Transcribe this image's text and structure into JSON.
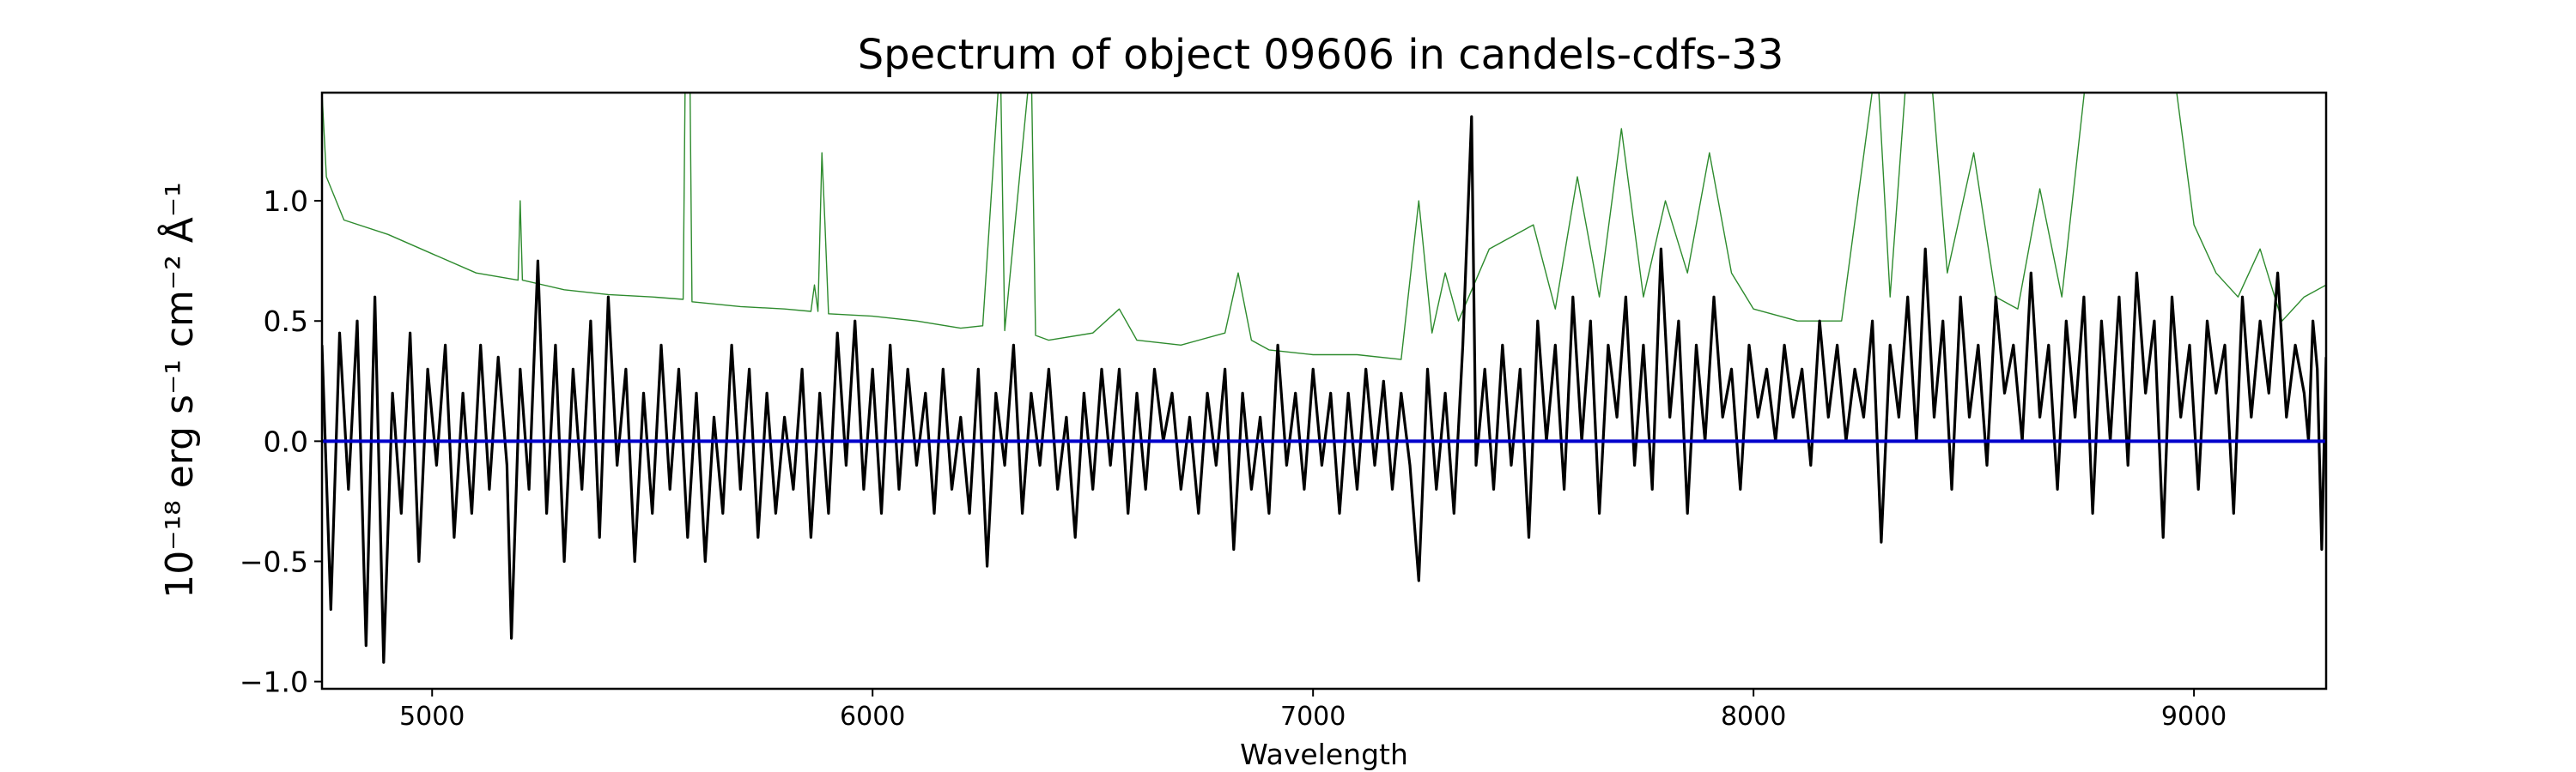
{
  "chart_data": {
    "type": "line",
    "title": "Spectrum of object 09606 in candels-cdfs-33",
    "xlabel": "Wavelength",
    "ylabel": "10⁻¹⁸ erg s⁻¹ cm⁻² Å⁻¹",
    "xlim": [
      4750,
      9300
    ],
    "ylim": [
      -1.03,
      1.45
    ],
    "xticks": [
      5000,
      6000,
      7000,
      8000,
      9000
    ],
    "xtick_labels": [
      "5000",
      "6000",
      "7000",
      "8000",
      "9000"
    ],
    "yticks": [
      1.0,
      0.5,
      0.0,
      -0.5,
      -1.0
    ],
    "ytick_labels": [
      "1.0",
      "0.5",
      "0.0",
      "−0.5",
      "−1.0"
    ],
    "grid": false,
    "legend": "none",
    "colors": {
      "flux": "#000000",
      "error": "#2e8b2e",
      "zero": "#0000cc"
    },
    "series": [
      {
        "id": "error",
        "color": "#2e8b2e",
        "points": [
          [
            4750,
            1.45
          ],
          [
            4760,
            1.1
          ],
          [
            4800,
            0.92
          ],
          [
            4900,
            0.86
          ],
          [
            5000,
            0.78
          ],
          [
            5100,
            0.7
          ],
          [
            5195,
            0.67
          ],
          [
            5200,
            1.0
          ],
          [
            5205,
            0.67
          ],
          [
            5300,
            0.63
          ],
          [
            5400,
            0.61
          ],
          [
            5500,
            0.6
          ],
          [
            5570,
            0.59
          ],
          [
            5575,
            1.6
          ],
          [
            5585,
            1.6
          ],
          [
            5590,
            0.58
          ],
          [
            5700,
            0.56
          ],
          [
            5800,
            0.55
          ],
          [
            5860,
            0.54
          ],
          [
            5868,
            0.65
          ],
          [
            5876,
            0.54
          ],
          [
            5885,
            1.2
          ],
          [
            5892,
            0.9
          ],
          [
            5900,
            0.53
          ],
          [
            6000,
            0.52
          ],
          [
            6100,
            0.5
          ],
          [
            6200,
            0.47
          ],
          [
            6250,
            0.48
          ],
          [
            6290,
            1.6
          ],
          [
            6300,
            0.46
          ],
          [
            6360,
            1.6
          ],
          [
            6370,
            0.44
          ],
          [
            6400,
            0.42
          ],
          [
            6500,
            0.45
          ],
          [
            6560,
            0.55
          ],
          [
            6600,
            0.42
          ],
          [
            6700,
            0.4
          ],
          [
            6800,
            0.45
          ],
          [
            6830,
            0.7
          ],
          [
            6860,
            0.42
          ],
          [
            6900,
            0.38
          ],
          [
            7000,
            0.36
          ],
          [
            7100,
            0.36
          ],
          [
            7200,
            0.34
          ],
          [
            7240,
            1.0
          ],
          [
            7270,
            0.45
          ],
          [
            7300,
            0.7
          ],
          [
            7330,
            0.5
          ],
          [
            7400,
            0.8
          ],
          [
            7500,
            0.9
          ],
          [
            7550,
            0.55
          ],
          [
            7600,
            1.1
          ],
          [
            7650,
            0.6
          ],
          [
            7700,
            1.3
          ],
          [
            7750,
            0.6
          ],
          [
            7800,
            1.0
          ],
          [
            7850,
            0.7
          ],
          [
            7900,
            1.2
          ],
          [
            7950,
            0.7
          ],
          [
            8000,
            0.55
          ],
          [
            8100,
            0.5
          ],
          [
            8200,
            0.5
          ],
          [
            8280,
            1.6
          ],
          [
            8310,
            0.6
          ],
          [
            8350,
            1.6
          ],
          [
            8400,
            1.6
          ],
          [
            8440,
            0.7
          ],
          [
            8500,
            1.2
          ],
          [
            8550,
            0.6
          ],
          [
            8600,
            0.55
          ],
          [
            8650,
            1.05
          ],
          [
            8700,
            0.6
          ],
          [
            8760,
            1.6
          ],
          [
            8800,
            1.6
          ],
          [
            8850,
            1.6
          ],
          [
            8900,
            1.6
          ],
          [
            8950,
            1.6
          ],
          [
            9000,
            0.9
          ],
          [
            9050,
            0.7
          ],
          [
            9100,
            0.6
          ],
          [
            9150,
            0.8
          ],
          [
            9200,
            0.5
          ],
          [
            9250,
            0.6
          ],
          [
            9300,
            0.65
          ]
        ]
      },
      {
        "id": "flux",
        "color": "#000000",
        "points": [
          [
            4750,
            0.4
          ],
          [
            4770,
            -0.7
          ],
          [
            4790,
            0.45
          ],
          [
            4810,
            -0.2
          ],
          [
            4830,
            0.5
          ],
          [
            4850,
            -0.85
          ],
          [
            4870,
            0.6
          ],
          [
            4890,
            -0.92
          ],
          [
            4910,
            0.2
          ],
          [
            4930,
            -0.3
          ],
          [
            4950,
            0.45
          ],
          [
            4970,
            -0.5
          ],
          [
            4990,
            0.3
          ],
          [
            5010,
            -0.1
          ],
          [
            5030,
            0.4
          ],
          [
            5050,
            -0.4
          ],
          [
            5070,
            0.2
          ],
          [
            5090,
            -0.3
          ],
          [
            5110,
            0.4
          ],
          [
            5130,
            -0.2
          ],
          [
            5150,
            0.35
          ],
          [
            5170,
            -0.1
          ],
          [
            5180,
            -0.82
          ],
          [
            5200,
            0.3
          ],
          [
            5220,
            -0.2
          ],
          [
            5240,
            0.75
          ],
          [
            5260,
            -0.3
          ],
          [
            5280,
            0.4
          ],
          [
            5300,
            -0.5
          ],
          [
            5320,
            0.3
          ],
          [
            5340,
            -0.2
          ],
          [
            5360,
            0.5
          ],
          [
            5380,
            -0.4
          ],
          [
            5400,
            0.6
          ],
          [
            5420,
            -0.1
          ],
          [
            5440,
            0.3
          ],
          [
            5460,
            -0.5
          ],
          [
            5480,
            0.2
          ],
          [
            5500,
            -0.3
          ],
          [
            5520,
            0.4
          ],
          [
            5540,
            -0.2
          ],
          [
            5560,
            0.3
          ],
          [
            5580,
            -0.4
          ],
          [
            5600,
            0.2
          ],
          [
            5620,
            -0.5
          ],
          [
            5640,
            0.1
          ],
          [
            5660,
            -0.3
          ],
          [
            5680,
            0.4
          ],
          [
            5700,
            -0.2
          ],
          [
            5720,
            0.3
          ],
          [
            5740,
            -0.4
          ],
          [
            5760,
            0.2
          ],
          [
            5780,
            -0.3
          ],
          [
            5800,
            0.1
          ],
          [
            5820,
            -0.2
          ],
          [
            5840,
            0.3
          ],
          [
            5860,
            -0.4
          ],
          [
            5880,
            0.2
          ],
          [
            5900,
            -0.3
          ],
          [
            5920,
            0.45
          ],
          [
            5940,
            -0.1
          ],
          [
            5960,
            0.5
          ],
          [
            5980,
            -0.2
          ],
          [
            6000,
            0.3
          ],
          [
            6020,
            -0.3
          ],
          [
            6040,
            0.4
          ],
          [
            6060,
            -0.2
          ],
          [
            6080,
            0.3
          ],
          [
            6100,
            -0.1
          ],
          [
            6120,
            0.2
          ],
          [
            6140,
            -0.3
          ],
          [
            6160,
            0.3
          ],
          [
            6180,
            -0.2
          ],
          [
            6200,
            0.1
          ],
          [
            6220,
            -0.3
          ],
          [
            6240,
            0.3
          ],
          [
            6260,
            -0.52
          ],
          [
            6280,
            0.2
          ],
          [
            6300,
            -0.1
          ],
          [
            6320,
            0.4
          ],
          [
            6340,
            -0.3
          ],
          [
            6360,
            0.2
          ],
          [
            6380,
            -0.1
          ],
          [
            6400,
            0.3
          ],
          [
            6420,
            -0.2
          ],
          [
            6440,
            0.1
          ],
          [
            6460,
            -0.4
          ],
          [
            6480,
            0.2
          ],
          [
            6500,
            -0.2
          ],
          [
            6520,
            0.3
          ],
          [
            6540,
            -0.1
          ],
          [
            6560,
            0.3
          ],
          [
            6580,
            -0.3
          ],
          [
            6600,
            0.2
          ],
          [
            6620,
            -0.2
          ],
          [
            6640,
            0.3
          ],
          [
            6660,
            0.0
          ],
          [
            6680,
            0.2
          ],
          [
            6700,
            -0.2
          ],
          [
            6720,
            0.1
          ],
          [
            6740,
            -0.3
          ],
          [
            6760,
            0.2
          ],
          [
            6780,
            -0.1
          ],
          [
            6800,
            0.3
          ],
          [
            6820,
            -0.45
          ],
          [
            6840,
            0.2
          ],
          [
            6860,
            -0.2
          ],
          [
            6880,
            0.1
          ],
          [
            6900,
            -0.3
          ],
          [
            6920,
            0.4
          ],
          [
            6940,
            -0.1
          ],
          [
            6960,
            0.2
          ],
          [
            6980,
            -0.2
          ],
          [
            7000,
            0.3
          ],
          [
            7020,
            -0.1
          ],
          [
            7040,
            0.2
          ],
          [
            7060,
            -0.3
          ],
          [
            7080,
            0.2
          ],
          [
            7100,
            -0.2
          ],
          [
            7120,
            0.3
          ],
          [
            7140,
            -0.1
          ],
          [
            7160,
            0.25
          ],
          [
            7180,
            -0.2
          ],
          [
            7200,
            0.2
          ],
          [
            7220,
            -0.1
          ],
          [
            7240,
            -0.58
          ],
          [
            7260,
            0.3
          ],
          [
            7280,
            -0.2
          ],
          [
            7300,
            0.2
          ],
          [
            7320,
            -0.3
          ],
          [
            7340,
            0.4
          ],
          [
            7360,
            1.35
          ],
          [
            7370,
            -0.1
          ],
          [
            7390,
            0.3
          ],
          [
            7410,
            -0.2
          ],
          [
            7430,
            0.4
          ],
          [
            7450,
            -0.1
          ],
          [
            7470,
            0.3
          ],
          [
            7490,
            -0.4
          ],
          [
            7510,
            0.5
          ],
          [
            7530,
            0.0
          ],
          [
            7550,
            0.4
          ],
          [
            7570,
            -0.2
          ],
          [
            7590,
            0.6
          ],
          [
            7610,
            0.0
          ],
          [
            7630,
            0.5
          ],
          [
            7650,
            -0.3
          ],
          [
            7670,
            0.4
          ],
          [
            7690,
            0.1
          ],
          [
            7710,
            0.6
          ],
          [
            7730,
            -0.1
          ],
          [
            7750,
            0.4
          ],
          [
            7770,
            -0.2
          ],
          [
            7790,
            0.8
          ],
          [
            7810,
            0.1
          ],
          [
            7830,
            0.5
          ],
          [
            7850,
            -0.3
          ],
          [
            7870,
            0.4
          ],
          [
            7890,
            0.0
          ],
          [
            7910,
            0.6
          ],
          [
            7930,
            0.1
          ],
          [
            7950,
            0.3
          ],
          [
            7970,
            -0.2
          ],
          [
            7990,
            0.4
          ],
          [
            8010,
            0.1
          ],
          [
            8030,
            0.3
          ],
          [
            8050,
            0.0
          ],
          [
            8070,
            0.4
          ],
          [
            8090,
            0.1
          ],
          [
            8110,
            0.3
          ],
          [
            8130,
            -0.1
          ],
          [
            8150,
            0.5
          ],
          [
            8170,
            0.1
          ],
          [
            8190,
            0.4
          ],
          [
            8210,
            0.0
          ],
          [
            8230,
            0.3
          ],
          [
            8250,
            0.1
          ],
          [
            8270,
            0.5
          ],
          [
            8290,
            -0.42
          ],
          [
            8310,
            0.4
          ],
          [
            8330,
            0.1
          ],
          [
            8350,
            0.6
          ],
          [
            8370,
            0.0
          ],
          [
            8390,
            0.8
          ],
          [
            8410,
            0.1
          ],
          [
            8430,
            0.5
          ],
          [
            8450,
            -0.2
          ],
          [
            8470,
            0.6
          ],
          [
            8490,
            0.1
          ],
          [
            8510,
            0.4
          ],
          [
            8530,
            -0.1
          ],
          [
            8550,
            0.6
          ],
          [
            8570,
            0.2
          ],
          [
            8590,
            0.4
          ],
          [
            8610,
            0.0
          ],
          [
            8630,
            0.7
          ],
          [
            8650,
            0.1
          ],
          [
            8670,
            0.4
          ],
          [
            8690,
            -0.2
          ],
          [
            8710,
            0.5
          ],
          [
            8730,
            0.1
          ],
          [
            8750,
            0.6
          ],
          [
            8770,
            -0.3
          ],
          [
            8790,
            0.5
          ],
          [
            8810,
            0.0
          ],
          [
            8830,
            0.6
          ],
          [
            8850,
            -0.1
          ],
          [
            8870,
            0.7
          ],
          [
            8890,
            0.2
          ],
          [
            8910,
            0.5
          ],
          [
            8930,
            -0.4
          ],
          [
            8950,
            0.6
          ],
          [
            8970,
            0.1
          ],
          [
            8990,
            0.4
          ],
          [
            9010,
            -0.2
          ],
          [
            9030,
            0.5
          ],
          [
            9050,
            0.2
          ],
          [
            9070,
            0.4
          ],
          [
            9090,
            -0.3
          ],
          [
            9110,
            0.6
          ],
          [
            9130,
            0.1
          ],
          [
            9150,
            0.5
          ],
          [
            9170,
            0.2
          ],
          [
            9190,
            0.7
          ],
          [
            9210,
            0.1
          ],
          [
            9230,
            0.4
          ],
          [
            9250,
            0.2
          ],
          [
            9260,
            0.0
          ],
          [
            9270,
            0.5
          ],
          [
            9280,
            0.3
          ],
          [
            9290,
            -0.45
          ],
          [
            9300,
            0.35
          ]
        ]
      },
      {
        "id": "zero",
        "color": "#0000cc",
        "points": [
          [
            4750,
            0.0
          ],
          [
            9300,
            0.0
          ]
        ]
      }
    ]
  }
}
